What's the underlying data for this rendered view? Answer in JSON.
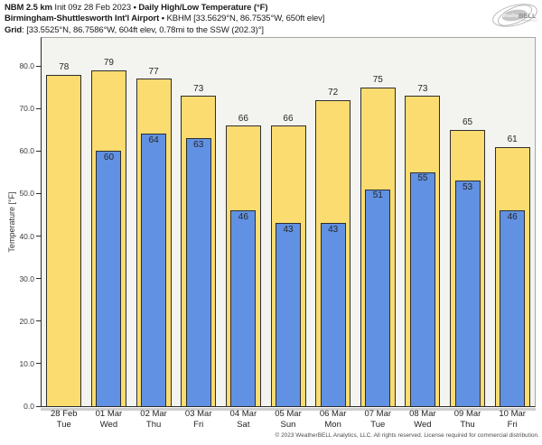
{
  "header": {
    "line1": {
      "model": "NBM 2.5 km",
      "init": "Init 09z 28 Feb 2023",
      "bullet": "•",
      "title": "Daily High/Low Temperature (°F)"
    },
    "line2": {
      "station": "Birmingham-Shuttlesworth Int'l Airport",
      "bullet": "•",
      "details": "KBHM [33.5629°N, 86.7535°W, 650ft elev]"
    },
    "line3": {
      "label": "Grid",
      "details": ": [33.5525°N, 86.7586°W, 604ft elev, 0.78mi to the SSW (202.3)°]"
    }
  },
  "logo": {
    "name_part1": "Weather",
    "name_part2": "BELL",
    "sub": "Analytics LLC"
  },
  "footer": "© 2023 WeatherBELL Analytics, LLC. All rights reserved. License required for commercial distribution.",
  "chart_data": {
    "type": "bar",
    "title": "Daily High/Low Temperature (°F)",
    "xlabel": "",
    "ylabel": "Temperature [°F]",
    "ylim": [
      0,
      86.6
    ],
    "yticks": [
      0,
      10,
      20,
      30,
      40,
      50,
      60,
      70,
      80
    ],
    "ytick_labels": [
      "0.0",
      "10.0",
      "20.0",
      "30.0",
      "40.0",
      "50.0",
      "60.0",
      "70.0",
      "80.0"
    ],
    "grid": false,
    "legend_position": "none",
    "categories": [
      {
        "date": "28 Feb",
        "day": "Tue"
      },
      {
        "date": "01 Mar",
        "day": "Wed"
      },
      {
        "date": "02 Mar",
        "day": "Thu"
      },
      {
        "date": "03 Mar",
        "day": "Fri"
      },
      {
        "date": "04 Mar",
        "day": "Sat"
      },
      {
        "date": "05 Mar",
        "day": "Sun"
      },
      {
        "date": "06 Mar",
        "day": "Mon"
      },
      {
        "date": "07 Mar",
        "day": "Tue"
      },
      {
        "date": "08 Mar",
        "day": "Wed"
      },
      {
        "date": "09 Mar",
        "day": "Thu"
      },
      {
        "date": "10 Mar",
        "day": "Fri"
      }
    ],
    "series": [
      {
        "name": "Daily High",
        "color": "#fadc70",
        "values": [
          78,
          79,
          77,
          73,
          66,
          66,
          72,
          75,
          73,
          65,
          61
        ]
      },
      {
        "name": "Daily Low",
        "color": "#6191e2",
        "values": [
          null,
          60,
          64,
          63,
          46,
          43,
          43,
          51,
          55,
          53,
          46
        ]
      }
    ],
    "colors": {
      "bar_border": "#2e2e2e",
      "plot_background": "#f3f3f0",
      "high_bar": "#fadc70",
      "low_bar": "#6191e2"
    }
  }
}
